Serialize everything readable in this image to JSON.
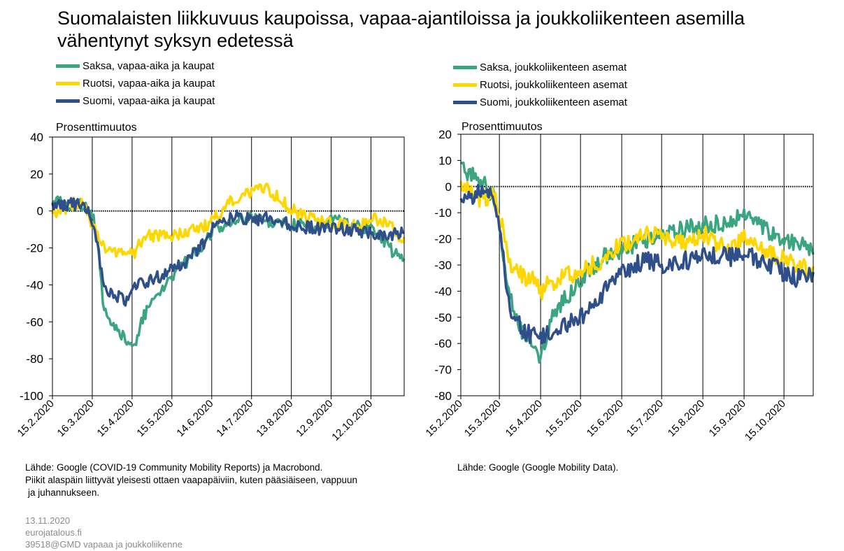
{
  "title": "Suomalaisten liikkuvuus kaupoissa, vapaa-ajantiloissa ja joukkoliikenteen asemilla vähentynyt syksyn edetessä",
  "colors": {
    "germany": "#3aa57e",
    "sweden": "#ffd700",
    "finland": "#2e4f8a"
  },
  "notes": {
    "left_source": "Lähde: Google (COVID-19 Community  Mobility Reports) ja Macrobond.",
    "left_line2": "Piikit alaspäin liittyvät  yleisesti  ottaen  vaapapäiviin,  kuten  pääsiäiseen,  vappuun",
    "left_line3": "ja juhannukseen.",
    "right_source": "Lähde: Google (Google Mobility Data)."
  },
  "footer": {
    "date": "13.11.2020",
    "site": "eurojatalous.fi",
    "code": "39518@GMD  vapaaa  ja  joukkoliikenne"
  },
  "chart_data": [
    {
      "type": "line",
      "unit_label": "Prosenttimuutos",
      "ylim": [
        -100,
        40
      ],
      "yticks": [
        40,
        20,
        0,
        -20,
        -40,
        -60,
        -80,
        -100
      ],
      "x_range": [
        "2020-02-15",
        "2020-11-06"
      ],
      "xticks": [
        "15.2.2020",
        "16.3.2020",
        "15.4.2020",
        "15.5.2020",
        "14.6.2020",
        "14.7.2020",
        "13.8.2020",
        "12.9.2020",
        "12.10.2020"
      ],
      "xtick_dates": [
        "2020-02-15",
        "2020-03-16",
        "2020-04-15",
        "2020-05-15",
        "2020-06-14",
        "2020-07-14",
        "2020-08-13",
        "2020-09-12",
        "2020-10-12"
      ],
      "grid": "vertical",
      "series": [
        {
          "name": "Saksa, vapaa-aika ja kaupat",
          "color": "#3aa57e",
          "x": [
            "2020-02-15",
            "2020-03-01",
            "2020-03-10",
            "2020-03-16",
            "2020-03-20",
            "2020-03-25",
            "2020-04-01",
            "2020-04-10",
            "2020-04-15",
            "2020-04-25",
            "2020-05-05",
            "2020-05-15",
            "2020-05-25",
            "2020-06-05",
            "2020-06-15",
            "2020-06-25",
            "2020-07-05",
            "2020-07-15",
            "2020-07-25",
            "2020-08-05",
            "2020-08-15",
            "2020-08-25",
            "2020-09-05",
            "2020-09-12",
            "2020-09-20",
            "2020-10-01",
            "2020-10-12",
            "2020-10-20",
            "2020-10-28",
            "2020-11-06"
          ],
          "values": [
            6,
            2,
            4,
            -2,
            -15,
            -55,
            -62,
            -70,
            -75,
            -55,
            -45,
            -35,
            -28,
            -20,
            -10,
            -8,
            -5,
            -4,
            -5,
            -6,
            -7,
            -8,
            -8,
            -4,
            -6,
            -8,
            -10,
            -14,
            -22,
            -27
          ]
        },
        {
          "name": "Ruotsi, vapaa-aika ja kaupat",
          "color": "#ffd700",
          "x": [
            "2020-02-15",
            "2020-03-01",
            "2020-03-10",
            "2020-03-16",
            "2020-03-25",
            "2020-04-05",
            "2020-04-15",
            "2020-04-25",
            "2020-05-05",
            "2020-05-15",
            "2020-05-25",
            "2020-06-05",
            "2020-06-15",
            "2020-06-25",
            "2020-07-05",
            "2020-07-15",
            "2020-07-25",
            "2020-08-05",
            "2020-08-15",
            "2020-08-25",
            "2020-09-05",
            "2020-09-15",
            "2020-09-25",
            "2020-10-05",
            "2020-10-15",
            "2020-10-25",
            "2020-11-06"
          ],
          "values": [
            -2,
            4,
            5,
            -8,
            -20,
            -22,
            -24,
            -14,
            -13,
            -14,
            -12,
            -10,
            -5,
            3,
            8,
            10,
            12,
            6,
            0,
            -4,
            -6,
            -6,
            -8,
            -8,
            -4,
            -8,
            -15
          ]
        },
        {
          "name": "Suomi, vapaa-aika ja kaupat",
          "color": "#2e4f8a",
          "x": [
            "2020-02-15",
            "2020-03-01",
            "2020-03-10",
            "2020-03-16",
            "2020-03-20",
            "2020-03-25",
            "2020-04-01",
            "2020-04-10",
            "2020-04-15",
            "2020-04-25",
            "2020-05-05",
            "2020-05-15",
            "2020-05-25",
            "2020-06-05",
            "2020-06-15",
            "2020-06-25",
            "2020-07-05",
            "2020-07-15",
            "2020-07-25",
            "2020-08-05",
            "2020-08-15",
            "2020-08-25",
            "2020-09-05",
            "2020-09-15",
            "2020-09-25",
            "2020-10-05",
            "2020-10-15",
            "2020-10-25",
            "2020-11-06"
          ],
          "values": [
            2,
            4,
            3,
            -5,
            -20,
            -40,
            -45,
            -48,
            -42,
            -38,
            -36,
            -32,
            -28,
            -20,
            -10,
            -5,
            -3,
            -5,
            -4,
            -6,
            -8,
            -9,
            -10,
            -9,
            -10,
            -11,
            -12,
            -14,
            -11
          ]
        }
      ]
    },
    {
      "type": "line",
      "unit_label": "Prosenttimuutos",
      "ylim": [
        -80,
        20
      ],
      "yticks": [
        20,
        10,
        0,
        -10,
        -20,
        -30,
        -40,
        -50,
        -60,
        -70,
        -80
      ],
      "x_range": [
        "2020-02-15",
        "2020-11-06"
      ],
      "xticks": [
        "15.2.2020",
        "15.3.2020",
        "15.4.2020",
        "15.5.2020",
        "15.6.2020",
        "15.7.2020",
        "15.8.2020",
        "15.9.2020",
        "15.10.2020"
      ],
      "xtick_dates": [
        "2020-02-15",
        "2020-03-15",
        "2020-04-15",
        "2020-05-15",
        "2020-06-15",
        "2020-07-15",
        "2020-08-15",
        "2020-09-15",
        "2020-10-15"
      ],
      "grid": "vertical",
      "series": [
        {
          "name": "Saksa, joukkoliikenteen asemat",
          "color": "#3aa57e",
          "x": [
            "2020-02-15",
            "2020-03-01",
            "2020-03-10",
            "2020-03-15",
            "2020-03-22",
            "2020-04-01",
            "2020-04-10",
            "2020-04-15",
            "2020-04-25",
            "2020-05-05",
            "2020-05-15",
            "2020-05-25",
            "2020-06-05",
            "2020-06-15",
            "2020-06-25",
            "2020-07-05",
            "2020-07-15",
            "2020-07-25",
            "2020-08-05",
            "2020-08-15",
            "2020-08-25",
            "2020-09-05",
            "2020-09-15",
            "2020-09-25",
            "2020-10-05",
            "2020-10-15",
            "2020-10-25",
            "2020-11-06"
          ],
          "values": [
            8,
            2,
            -3,
            -15,
            -40,
            -55,
            -60,
            -65,
            -48,
            -42,
            -35,
            -30,
            -26,
            -24,
            -22,
            -20,
            -18,
            -17,
            -16,
            -15,
            -14,
            -13,
            -10,
            -15,
            -18,
            -20,
            -22,
            -25
          ]
        },
        {
          "name": "Ruotsi, joukkoliikenteen asemat",
          "color": "#ffd700",
          "x": [
            "2020-02-15",
            "2020-03-01",
            "2020-03-10",
            "2020-03-15",
            "2020-03-22",
            "2020-04-01",
            "2020-04-10",
            "2020-04-15",
            "2020-04-25",
            "2020-05-05",
            "2020-05-15",
            "2020-05-25",
            "2020-06-05",
            "2020-06-15",
            "2020-06-25",
            "2020-07-05",
            "2020-07-15",
            "2020-07-25",
            "2020-08-05",
            "2020-08-15",
            "2020-08-25",
            "2020-09-05",
            "2020-09-15",
            "2020-09-25",
            "2020-10-05",
            "2020-10-15",
            "2020-10-25",
            "2020-11-06"
          ],
          "values": [
            0,
            -5,
            -3,
            -10,
            -30,
            -34,
            -36,
            -40,
            -36,
            -34,
            -32,
            -30,
            -26,
            -22,
            -20,
            -18,
            -20,
            -22,
            -20,
            -18,
            -22,
            -24,
            -20,
            -22,
            -26,
            -28,
            -30,
            -33
          ]
        },
        {
          "name": "Suomi, joukkoliikenteen asemat",
          "color": "#2e4f8a",
          "x": [
            "2020-02-15",
            "2020-03-01",
            "2020-03-10",
            "2020-03-15",
            "2020-03-22",
            "2020-04-01",
            "2020-04-10",
            "2020-04-15",
            "2020-04-25",
            "2020-05-05",
            "2020-05-15",
            "2020-05-25",
            "2020-06-05",
            "2020-06-15",
            "2020-06-25",
            "2020-07-05",
            "2020-07-15",
            "2020-07-25",
            "2020-08-05",
            "2020-08-15",
            "2020-08-25",
            "2020-09-05",
            "2020-09-15",
            "2020-09-25",
            "2020-10-05",
            "2020-10-15",
            "2020-10-25",
            "2020-11-06"
          ],
          "values": [
            -5,
            -2,
            -4,
            -15,
            -45,
            -55,
            -57,
            -58,
            -55,
            -52,
            -50,
            -45,
            -38,
            -33,
            -30,
            -28,
            -30,
            -29,
            -28,
            -27,
            -26,
            -27,
            -26,
            -28,
            -30,
            -33,
            -35,
            -34
          ]
        }
      ]
    }
  ]
}
